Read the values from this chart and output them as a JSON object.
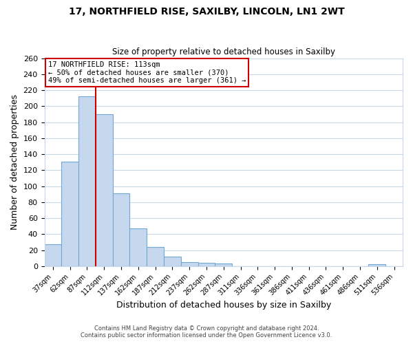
{
  "title1": "17, NORTHFIELD RISE, SAXILBY, LINCOLN, LN1 2WT",
  "title2": "Size of property relative to detached houses in Saxilby",
  "xlabel": "Distribution of detached houses by size in Saxilby",
  "ylabel": "Number of detached properties",
  "bar_labels": [
    "37sqm",
    "62sqm",
    "87sqm",
    "112sqm",
    "137sqm",
    "162sqm",
    "187sqm",
    "212sqm",
    "237sqm",
    "262sqm",
    "287sqm",
    "311sqm",
    "336sqm",
    "361sqm",
    "386sqm",
    "411sqm",
    "436sqm",
    "461sqm",
    "486sqm",
    "511sqm",
    "536sqm"
  ],
  "bar_values": [
    27,
    131,
    212,
    190,
    91,
    47,
    24,
    12,
    5,
    4,
    3,
    0,
    0,
    0,
    0,
    0,
    0,
    0,
    0,
    2,
    0
  ],
  "bar_color": "#c5d8ed",
  "bar_edge_color": "#6fa8d6",
  "vline_color": "#cc0000",
  "ylim": [
    0,
    260
  ],
  "yticks": [
    0,
    20,
    40,
    60,
    80,
    100,
    120,
    140,
    160,
    180,
    200,
    220,
    240,
    260
  ],
  "annotation_title": "17 NORTHFIELD RISE: 113sqm",
  "annotation_line1": "← 50% of detached houses are smaller (370)",
  "annotation_line2": "49% of semi-detached houses are larger (361) →",
  "annotation_box_color": "#ffffff",
  "annotation_box_edge": "#cc0000",
  "footer1": "Contains HM Land Registry data © Crown copyright and database right 2024.",
  "footer2": "Contains public sector information licensed under the Open Government Licence v3.0.",
  "background_color": "#ffffff",
  "grid_color": "#c8d8e8"
}
